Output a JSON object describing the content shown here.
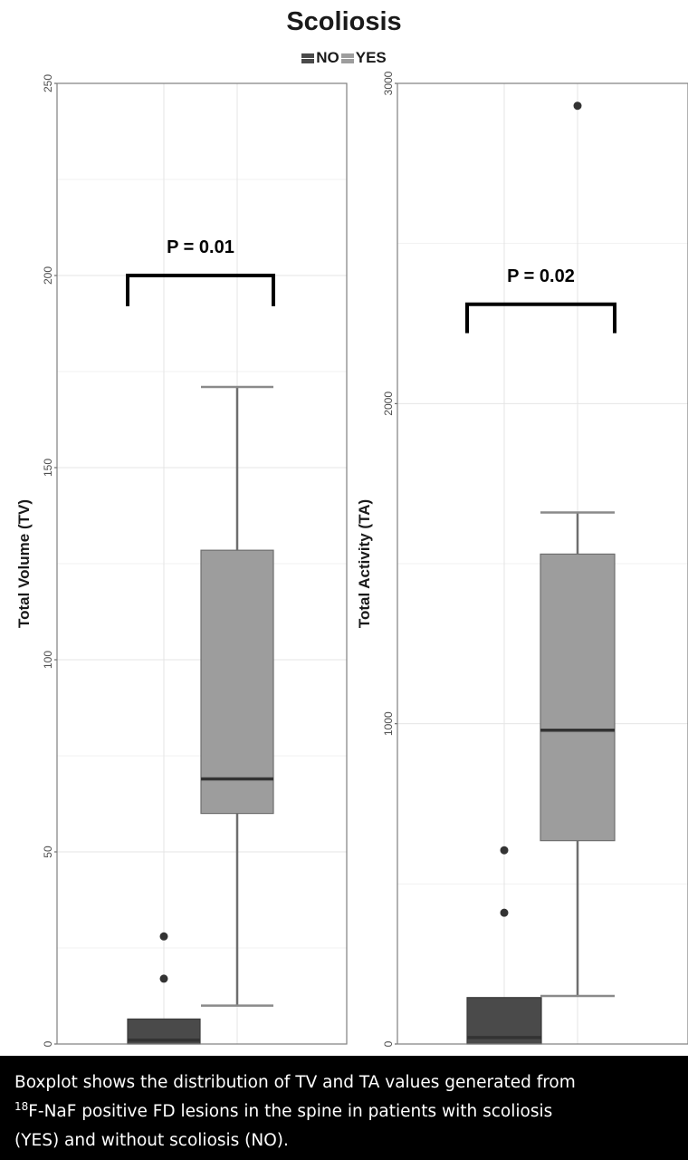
{
  "title": "Scoliosis",
  "legend": [
    {
      "label": "NO",
      "color": "#4a4a4a"
    },
    {
      "label": "YES",
      "color": "#9d9d9d"
    }
  ],
  "chart_data": [
    {
      "type": "box",
      "ylabel": "Total Volume (TV)",
      "ylim": [
        0,
        250
      ],
      "yticks": [
        0,
        50,
        100,
        150,
        200,
        250
      ],
      "ytick_labels": [
        "0",
        "50",
        "100",
        "150",
        "200",
        "250"
      ],
      "grid": true,
      "categories": [
        "NO",
        "YES"
      ],
      "boxes": [
        {
          "group": "NO",
          "whisker_low": 0,
          "q1": 0,
          "median": 1,
          "q3": 6.5,
          "whisker_high": 6.5,
          "outliers": [
            17,
            28
          ]
        },
        {
          "group": "YES",
          "whisker_low": 10,
          "q1": 60,
          "median": 69,
          "q3": 128.5,
          "whisker_high": 171,
          "outliers": []
        }
      ],
      "annotation": {
        "text": "P = 0.01",
        "bracket_y": 200,
        "bracket_drop": 192
      }
    },
    {
      "type": "box",
      "ylabel": "Total Activity (TA)",
      "ylim": [
        0,
        3000
      ],
      "yticks": [
        0,
        1000,
        2000,
        3000
      ],
      "ytick_labels": [
        "0",
        "1000",
        "2000",
        "3000"
      ],
      "grid": true,
      "categories": [
        "NO",
        "YES"
      ],
      "boxes": [
        {
          "group": "NO",
          "whisker_low": 0,
          "q1": 0,
          "median": 20,
          "q3": 145,
          "whisker_high": 145,
          "outliers": [
            410,
            605
          ]
        },
        {
          "group": "YES",
          "whisker_low": 150,
          "q1": 635,
          "median": 980,
          "q3": 1530,
          "whisker_high": 1660,
          "outliers": [
            2930
          ]
        }
      ],
      "annotation": {
        "text": "P = 0.02",
        "bracket_y": 2310,
        "bracket_drop": 2220
      }
    }
  ],
  "caption": {
    "line1": "Boxplot shows the distribution of TV and TA values generated from",
    "sup": "18",
    "line2": "F-NaF positive FD lesions in the spine in patients with scoliosis",
    "line3": "(YES) and without scoliosis (NO)."
  }
}
